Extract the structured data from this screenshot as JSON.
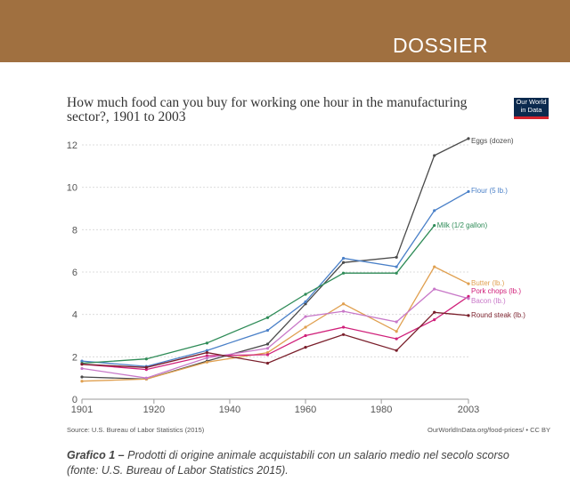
{
  "banner": {
    "label": "DOSSIER"
  },
  "logo": {
    "line1": "Our World",
    "line2": "in Data"
  },
  "source_left": "Source: U.S. Bureau of Labor Statistics (2015)",
  "source_right": "OurWorldInData.org/food-prices/ • CC BY",
  "caption": {
    "label": "Grafico 1 –",
    "text": "Prodotti di origine animale acquistabili con un salario medio nel secolo scorso (fonte: U.S. Bureau of Labor Statistics 2015)."
  },
  "chart_data": {
    "type": "line",
    "title": "How much food can you buy for working one hour in the manufacturing sector?, 1901 to 2003",
    "xlabel": "",
    "ylabel": "",
    "xlim": [
      1901,
      2003
    ],
    "ylim": [
      0,
      12
    ],
    "x_ticks": [
      1901,
      1920,
      1940,
      1960,
      1980,
      2003
    ],
    "y_ticks": [
      0,
      2,
      4,
      6,
      8,
      10,
      12
    ],
    "grid": "horizontal dotted",
    "legend": "inline labels at line ends",
    "series": [
      {
        "name": "Eggs (dozen)",
        "color": "#4a4a4a",
        "x": [
          1901,
          1918,
          1934,
          1950,
          1960,
          1970,
          1984,
          1994,
          2003
        ],
        "y": [
          1.05,
          0.95,
          1.8,
          2.6,
          4.5,
          6.45,
          6.7,
          11.5,
          12.3
        ]
      },
      {
        "name": "Flour (5 lb.)",
        "color": "#4a80c8",
        "x": [
          1901,
          1918,
          1934,
          1950,
          1960,
          1970,
          1984,
          1994,
          2003
        ],
        "y": [
          1.8,
          1.55,
          2.3,
          3.25,
          4.6,
          6.65,
          6.25,
          8.9,
          9.8
        ]
      },
      {
        "name": "Milk (1/2 gallon)",
        "color": "#2e8b57",
        "x": [
          1901,
          1918,
          1934,
          1950,
          1960,
          1970,
          1984,
          1994
        ],
        "y": [
          1.7,
          1.9,
          2.65,
          3.85,
          4.95,
          5.95,
          5.95,
          8.2
        ]
      },
      {
        "name": "Butter (lb.)",
        "color": "#e0a050",
        "x": [
          1901,
          1918,
          1934,
          1950,
          1960,
          1970,
          1984,
          1994,
          2003
        ],
        "y": [
          0.85,
          0.95,
          1.75,
          2.2,
          3.4,
          4.5,
          3.2,
          6.25,
          5.45
        ]
      },
      {
        "name": "Pork chops (lb.)",
        "color": "#d0207a",
        "x": [
          1901,
          1918,
          1934,
          1950,
          1960,
          1970,
          1984,
          1994,
          2003
        ],
        "y": [
          1.65,
          1.4,
          2.05,
          2.1,
          3.0,
          3.4,
          2.85,
          3.75,
          4.85
        ]
      },
      {
        "name": "Bacon (lb.)",
        "color": "#c878c8",
        "x": [
          1901,
          1918,
          1934,
          1950,
          1960,
          1970,
          1984,
          1994,
          2003
        ],
        "y": [
          1.45,
          1.0,
          1.95,
          2.4,
          3.9,
          4.15,
          3.65,
          5.2,
          4.75
        ]
      },
      {
        "name": "Round steak (lb.)",
        "color": "#7a1f2b",
        "x": [
          1901,
          1918,
          1934,
          1950,
          1960,
          1970,
          1984,
          1994,
          2003
        ],
        "y": [
          1.65,
          1.5,
          2.2,
          1.7,
          2.45,
          3.05,
          2.3,
          4.1,
          3.95
        ]
      }
    ]
  }
}
